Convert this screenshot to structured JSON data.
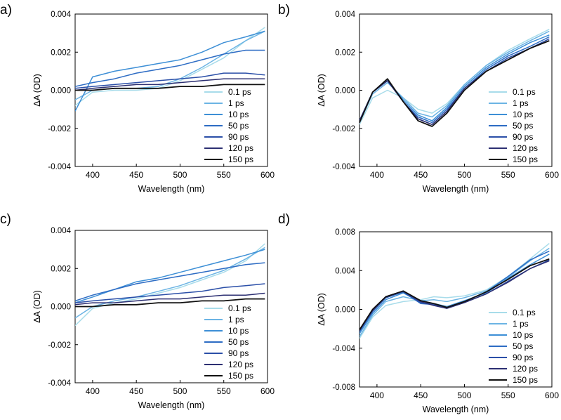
{
  "legend_labels": [
    "0.1 ps",
    "1 ps",
    "10 ps",
    "50 ps",
    "90 ps",
    "120 ps",
    "150 ps"
  ],
  "series_colors": [
    "#a8dcea",
    "#6cb4e4",
    "#3d8fd6",
    "#2d6cc4",
    "#2b4fa8",
    "#2c2f72",
    "#111111"
  ],
  "chart_data": [
    {
      "panel": "a)",
      "type": "line",
      "xlabel": "Wavelength (nm)",
      "ylabel": "ΔA (OD)",
      "xlim": [
        380,
        600
      ],
      "ylim": [
        -0.004,
        0.004
      ],
      "xticks": [
        400,
        450,
        500,
        550,
        600
      ],
      "yticks": [
        -0.004,
        -0.002,
        0.0,
        0.002,
        0.004
      ],
      "ytick_labels": [
        "-0.004",
        "-0.002",
        "0.000",
        "0.002",
        "0.004"
      ],
      "legend_position": "bottom-right",
      "x": [
        380,
        400,
        425,
        450,
        475,
        500,
        525,
        550,
        575,
        597
      ],
      "series": [
        {
          "name": "0.1 ps",
          "values": [
            -0.0008,
            -0.0001,
            0.0,
            0.0,
            0.0001,
            0.0005,
            0.0011,
            0.0017,
            0.0026,
            0.0033
          ]
        },
        {
          "name": "1 ps",
          "values": [
            -0.0005,
            0.0,
            0.0001,
            0.0001,
            0.0002,
            0.0006,
            0.0012,
            0.0019,
            0.0026,
            0.0031
          ]
        },
        {
          "name": "10 ps",
          "values": [
            -0.0011,
            0.0007,
            0.001,
            0.0012,
            0.0014,
            0.0016,
            0.002,
            0.0025,
            0.0028,
            0.0031
          ]
        },
        {
          "name": "50 ps",
          "values": [
            0.0002,
            0.0004,
            0.0006,
            0.0009,
            0.0011,
            0.0013,
            0.0016,
            0.0019,
            0.0021,
            0.0021
          ]
        },
        {
          "name": "90 ps",
          "values": [
            0.0001,
            0.0002,
            0.0003,
            0.0004,
            0.0005,
            0.0006,
            0.0007,
            0.0009,
            0.0009,
            0.0008
          ]
        },
        {
          "name": "120 ps",
          "values": [
            0.0,
            0.0001,
            0.0002,
            0.0003,
            0.0003,
            0.0004,
            0.0005,
            0.0006,
            0.0006,
            0.0006
          ]
        },
        {
          "name": "150 ps",
          "values": [
            0.0,
            0.0,
            0.0001,
            0.0001,
            0.0001,
            0.0002,
            0.0002,
            0.0003,
            0.0003,
            0.0003
          ]
        }
      ]
    },
    {
      "panel": "b)",
      "type": "line",
      "xlabel": "Wavelength (nm)",
      "ylabel": "ΔA (OD)",
      "xlim": [
        380,
        600
      ],
      "ylim": [
        -0.004,
        0.004
      ],
      "xticks": [
        400,
        450,
        500,
        550,
        600
      ],
      "yticks": [
        -0.004,
        -0.002,
        0.0,
        0.002,
        0.004
      ],
      "ytick_labels": [
        "-0.004",
        "-0.002",
        "0.000",
        "0.002",
        "0.004"
      ],
      "legend_position": "bottom-right",
      "x": [
        380,
        395,
        412,
        430,
        447,
        463,
        480,
        500,
        525,
        550,
        575,
        597
      ],
      "series": [
        {
          "name": "0.1 ps",
          "values": [
            -0.0018,
            -0.0004,
            0.0,
            -0.0004,
            -0.001,
            -0.0012,
            -0.0007,
            0.0003,
            0.0013,
            0.0021,
            0.0027,
            0.0032
          ]
        },
        {
          "name": "1 ps",
          "values": [
            -0.0017,
            -0.0002,
            0.0004,
            -0.0004,
            -0.0012,
            -0.0014,
            -0.0008,
            0.0003,
            0.0013,
            0.002,
            0.0026,
            0.0031
          ]
        },
        {
          "name": "10 ps",
          "values": [
            -0.0016,
            -0.0001,
            0.0005,
            -0.0005,
            -0.0013,
            -0.0016,
            -0.0009,
            0.0002,
            0.0012,
            0.0019,
            0.0025,
            0.0029
          ]
        },
        {
          "name": "50 ps",
          "values": [
            -0.0016,
            -0.0001,
            0.0005,
            -0.0006,
            -0.0014,
            -0.0017,
            -0.001,
            0.0001,
            0.0011,
            0.0018,
            0.0023,
            0.0028
          ]
        },
        {
          "name": "90 ps",
          "values": [
            -0.0016,
            -0.0001,
            0.0005,
            -0.0006,
            -0.0015,
            -0.0018,
            -0.0011,
            0.0001,
            0.001,
            0.0017,
            0.0022,
            0.0027
          ]
        },
        {
          "name": "120 ps",
          "values": [
            -0.0016,
            -0.0001,
            0.0005,
            -0.0006,
            -0.0015,
            -0.0018,
            -0.0011,
            0.0001,
            0.001,
            0.0016,
            0.0022,
            0.0026
          ]
        },
        {
          "name": "150 ps",
          "values": [
            -0.0017,
            -0.0001,
            0.0006,
            -0.0006,
            -0.0016,
            -0.0019,
            -0.0012,
            0.0,
            0.001,
            0.0016,
            0.0022,
            0.0026
          ]
        }
      ]
    },
    {
      "panel": "c)",
      "type": "line",
      "xlabel": "Wavelength (nm)",
      "ylabel": "ΔA (OD)",
      "xlim": [
        380,
        600
      ],
      "ylim": [
        -0.004,
        0.004
      ],
      "xticks": [
        400,
        450,
        500,
        550,
        600
      ],
      "yticks": [
        -0.004,
        -0.002,
        0.0,
        0.002,
        0.004
      ],
      "ytick_labels": [
        "-0.004",
        "-0.002",
        "0.000",
        "0.002",
        "0.004"
      ],
      "legend_position": "bottom-right",
      "x": [
        380,
        400,
        425,
        450,
        475,
        500,
        525,
        550,
        575,
        597
      ],
      "series": [
        {
          "name": "0.1 ps",
          "values": [
            -0.001,
            -0.0001,
            0.0002,
            0.0004,
            0.0007,
            0.001,
            0.0014,
            0.0018,
            0.0024,
            0.0033
          ]
        },
        {
          "name": "1 ps",
          "values": [
            -0.0006,
            0.0,
            0.0003,
            0.0005,
            0.0008,
            0.0011,
            0.0015,
            0.0019,
            0.0025,
            0.0031
          ]
        },
        {
          "name": "10 ps",
          "values": [
            0.0002,
            0.0005,
            0.0009,
            0.0013,
            0.0015,
            0.0018,
            0.0021,
            0.0024,
            0.0027,
            0.003
          ]
        },
        {
          "name": "50 ps",
          "values": [
            0.0003,
            0.0006,
            0.0009,
            0.0012,
            0.0014,
            0.0016,
            0.0018,
            0.002,
            0.0022,
            0.0023
          ]
        },
        {
          "name": "90 ps",
          "values": [
            0.0002,
            0.0003,
            0.0004,
            0.0005,
            0.0006,
            0.0007,
            0.0008,
            0.001,
            0.0011,
            0.0012
          ]
        },
        {
          "name": "120 ps",
          "values": [
            0.0001,
            0.0002,
            0.0002,
            0.0003,
            0.0004,
            0.0004,
            0.0005,
            0.0006,
            0.0006,
            0.0007
          ]
        },
        {
          "name": "150 ps",
          "values": [
            0.0,
            0.0,
            0.0001,
            0.0001,
            0.0002,
            0.0002,
            0.0003,
            0.0003,
            0.0004,
            0.0004
          ]
        }
      ]
    },
    {
      "panel": "d)",
      "type": "line",
      "xlabel": "Wavelength (nm)",
      "ylabel": "ΔA (OD)",
      "xlim": [
        380,
        600
      ],
      "ylim": [
        -0.008,
        0.008
      ],
      "xticks": [
        400,
        450,
        500,
        550,
        600
      ],
      "yticks": [
        -0.008,
        -0.004,
        0.0,
        0.004,
        0.008
      ],
      "ytick_labels": [
        "-0.008",
        "-0.004",
        "0.000",
        "0.004",
        "0.008"
      ],
      "legend_position": "bottom-right",
      "x": [
        380,
        395,
        410,
        430,
        450,
        465,
        480,
        500,
        525,
        550,
        575,
        597
      ],
      "series": [
        {
          "name": "0.1 ps",
          "values": [
            -0.003,
            -0.0008,
            0.0004,
            0.0008,
            0.001,
            0.0013,
            0.0012,
            0.0014,
            0.002,
            0.0034,
            0.0052,
            0.0068
          ]
        },
        {
          "name": "1 ps",
          "values": [
            -0.0028,
            -0.0006,
            0.0008,
            0.0013,
            0.0009,
            0.001,
            0.0008,
            0.0012,
            0.0019,
            0.0033,
            0.005,
            0.0063
          ]
        },
        {
          "name": "10 ps",
          "values": [
            -0.0025,
            -0.0004,
            0.001,
            0.0017,
            0.0007,
            0.0006,
            0.0003,
            0.0009,
            0.0017,
            0.0032,
            0.0046,
            0.0057
          ]
        },
        {
          "name": "50 ps",
          "values": [
            -0.0023,
            -0.0002,
            0.0012,
            0.0018,
            0.0006,
            0.0005,
            0.0002,
            0.0008,
            0.0018,
            0.0034,
            0.0051,
            0.006
          ]
        },
        {
          "name": "90 ps",
          "values": [
            -0.0022,
            -0.0002,
            0.0012,
            0.0018,
            0.0007,
            0.0005,
            0.0001,
            0.0007,
            0.0016,
            0.0029,
            0.0042,
            0.0051
          ]
        },
        {
          "name": "120 ps",
          "values": [
            -0.0022,
            -0.0001,
            0.0013,
            0.0019,
            0.0008,
            0.0004,
            0.0001,
            0.0007,
            0.0016,
            0.0028,
            0.0042,
            0.005
          ]
        },
        {
          "name": "150 ps",
          "values": [
            -0.0021,
            0.0,
            0.0013,
            0.0019,
            0.0009,
            0.0006,
            0.0002,
            0.0008,
            0.0018,
            0.0031,
            0.0045,
            0.0052
          ]
        }
      ]
    }
  ]
}
